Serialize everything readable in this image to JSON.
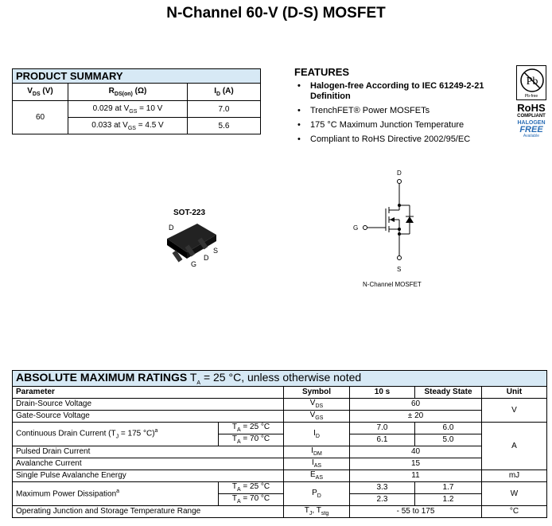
{
  "title": "N-Channel 60-V (D-S) MOSFET",
  "product_summary": {
    "title": "PRODUCT SUMMARY",
    "headers": [
      "V",
      "DS",
      " (V)",
      "R",
      "DS(on)",
      " (Ω)",
      "I",
      "D",
      " (A)"
    ],
    "vds": "60",
    "rows": [
      {
        "r": "0.029 at V",
        "sub": "GS",
        "r2": " = 10 V",
        "id": "7.0"
      },
      {
        "r": "0.033 at V",
        "sub": "GS",
        "r2": " = 4.5 V",
        "id": "5.6"
      }
    ]
  },
  "features": {
    "title": "FEATURES",
    "items": [
      "Halogen-free According to IEC 61249-2-21 Definition",
      "TrenchFET® Power MOSFETs",
      "175 °C Maximum Junction Temperature",
      "Compliant to RoHS Directive 2002/95/EC"
    ]
  },
  "logo": {
    "pb": "Pb",
    "pbfree": "Pb-free",
    "rohs": "RoHS",
    "compliant": "COMPLIANT",
    "halogen": "HALOGEN",
    "free": "FREE",
    "available": "Available",
    "halogen_color": "#2a6db5"
  },
  "package": {
    "name": "SOT-223",
    "pins": [
      "D",
      "G",
      "D",
      "S"
    ]
  },
  "schematic": {
    "d": "D",
    "g": "G",
    "s": "S",
    "caption": "N-Channel MOSFET"
  },
  "amr": {
    "title": "ABSOLUTE MAXIMUM RATINGS",
    "cond_t": "T",
    "cond_sub": "A",
    "cond": " = 25 °C, unless otherwise noted",
    "headers": [
      "Parameter",
      "Symbol",
      "10 s",
      "Steady State",
      "Unit"
    ],
    "ta25": "= 25 °C",
    "ta70": "= 70 °C",
    "rows": {
      "vds": {
        "p": "Drain-Source Voltage",
        "s": "V",
        "ss": "DS",
        "v": "60"
      },
      "vgs": {
        "p": "Gate-Source Voltage",
        "s": "V",
        "ss": "GS",
        "v": "± 20",
        "u": "V"
      },
      "id": {
        "p": "Continuous Drain Current (T",
        "ps": "J",
        "p2": " = 175 °C)",
        "sup": "a",
        "s": "I",
        "ss": "D",
        "a": "7.0",
        "b": "6.0",
        "c": "6.1",
        "d": "5.0",
        "u": "A"
      },
      "idm": {
        "p": "Pulsed Drain Current",
        "s": "I",
        "ss": "DM",
        "v": "40"
      },
      "ias": {
        "p": "Avalanche Current",
        "s": "I",
        "ss": "AS",
        "v": "15"
      },
      "eas": {
        "p": "Single Pulse Avalanche Energy",
        "s": "E",
        "ss": "AS",
        "v": "11",
        "u": "mJ"
      },
      "pd": {
        "p": "Maximum Power Dissipation",
        "sup": "a",
        "s": "P",
        "ss": "D",
        "a": "3.3",
        "b": "1.7",
        "c": "2.3",
        "d": "1.2",
        "u": "W"
      },
      "tj": {
        "p": "Operating Junction and Storage Temperature Range",
        "s": "T",
        "ss": "J",
        "s2": ", T",
        "ss2": "stg",
        "v": "- 55 to 175",
        "u": "°C"
      }
    }
  }
}
